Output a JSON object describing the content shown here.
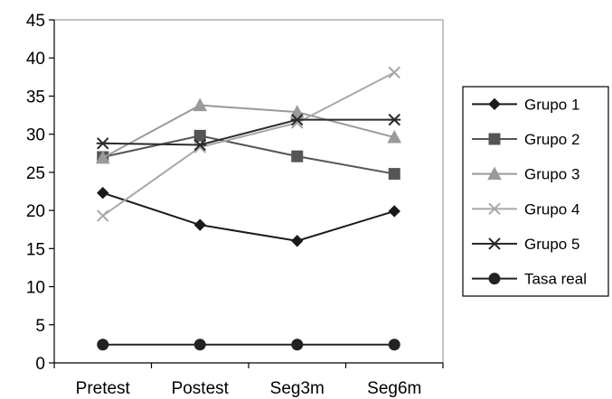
{
  "chart_data": {
    "type": "line",
    "title": "",
    "xlabel": "",
    "ylabel": "",
    "categories": [
      "Pretest",
      "Postest",
      "Seg3m",
      "Seg6m"
    ],
    "ylim": [
      0,
      45
    ],
    "yticks": [
      0,
      5,
      10,
      15,
      20,
      25,
      30,
      35,
      40,
      45
    ],
    "grid": false,
    "legend_position": "right",
    "series": [
      {
        "name": "Grupo 1",
        "values": [
          22.3,
          18.1,
          16.0,
          19.9
        ],
        "marker": "diamond",
        "color": "#1a1a1a"
      },
      {
        "name": "Grupo 2",
        "values": [
          27.0,
          29.8,
          27.1,
          24.8
        ],
        "marker": "square",
        "color": "#555555"
      },
      {
        "name": "Grupo 3",
        "values": [
          26.9,
          33.8,
          32.9,
          29.6
        ],
        "marker": "triangle",
        "color": "#9a9a9a"
      },
      {
        "name": "Grupo 4",
        "values": [
          19.3,
          28.3,
          31.5,
          38.1
        ],
        "marker": "x",
        "color": "#a8a8a8"
      },
      {
        "name": "Grupo 5",
        "values": [
          28.8,
          28.6,
          31.9,
          31.9
        ],
        "marker": "asterisk",
        "color": "#2a2a2a"
      },
      {
        "name": "Tasa real",
        "values": [
          2.4,
          2.4,
          2.4,
          2.4
        ],
        "marker": "circle",
        "color": "#222222"
      }
    ]
  }
}
